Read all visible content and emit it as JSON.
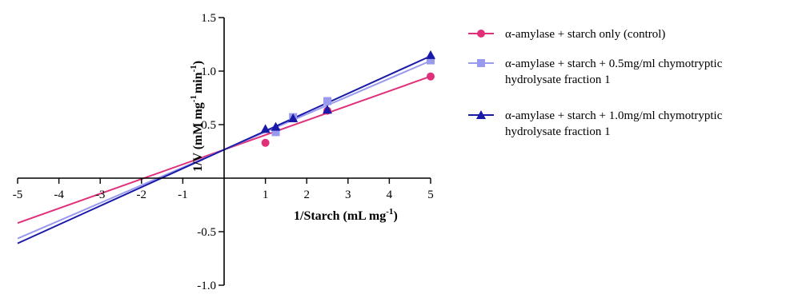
{
  "chart_data": {
    "type": "scatter",
    "xlabel": {
      "main": "1/Starch (mL mg",
      "sup": "-1",
      "tail": ")"
    },
    "ylabel": {
      "main": "1/V (mM mg",
      "sup1": "-1",
      "mid": "min",
      "sup2": "-1",
      "tail": ")"
    },
    "xlim": [
      -5,
      5
    ],
    "ylim": [
      -1.0,
      1.5
    ],
    "x_ticks": [
      -5,
      -4,
      -3,
      -2,
      -1,
      1,
      2,
      3,
      4,
      5
    ],
    "x_tick_labels": [
      "-5",
      "-4",
      "-3",
      "-2",
      "-1",
      "1",
      "2",
      "3",
      "4",
      "5"
    ],
    "y_ticks": [
      -1.0,
      -0.5,
      0.5,
      1.0,
      1.5
    ],
    "y_tick_labels": [
      "-1.0",
      "-0.5",
      "0.5",
      "1.0",
      "1.5"
    ],
    "grid": false,
    "legend_position": "right",
    "series": [
      {
        "name": "α-amylase + starch only (control)",
        "color": "#e0307a",
        "marker": "circle",
        "points": [
          [
            1,
            0.33
          ],
          [
            2.5,
            0.63
          ],
          [
            5,
            0.95
          ]
        ],
        "fit": {
          "slope": 0.137,
          "intercept": 0.266,
          "x_from": -5,
          "x_to": 5
        }
      },
      {
        "name": "α-amylase + starch + 0.5mg/ml chymotryptic hydrolysate fraction 1",
        "legend_lines": [
          "α-amylase + starch + 0.5mg/ml chymotryptic",
          "hydrolysate fraction 1"
        ],
        "color": "#9999ee",
        "marker": "square",
        "points": [
          [
            1.25,
            0.43
          ],
          [
            1.67,
            0.57
          ],
          [
            2.5,
            0.72
          ],
          [
            5,
            1.1
          ]
        ],
        "fit": {
          "slope": 0.166,
          "intercept": 0.266,
          "x_from": -5,
          "x_to": 5
        }
      },
      {
        "name": "α-amylase + starch + 1.0mg/ml chymotryptic hydrolysate fraction 1",
        "legend_lines": [
          "α-amylase + starch + 1.0mg/ml chymotryptic",
          "hydrolysate fraction 1"
        ],
        "color": "#1a1aa8",
        "marker": "triangle",
        "points": [
          [
            1,
            0.46
          ],
          [
            1.25,
            0.48
          ],
          [
            1.67,
            0.56
          ],
          [
            2.5,
            0.64
          ],
          [
            5,
            1.15
          ]
        ],
        "fit": {
          "slope": 0.175,
          "intercept": 0.266,
          "x_from": -5,
          "x_to": 5
        }
      }
    ]
  }
}
